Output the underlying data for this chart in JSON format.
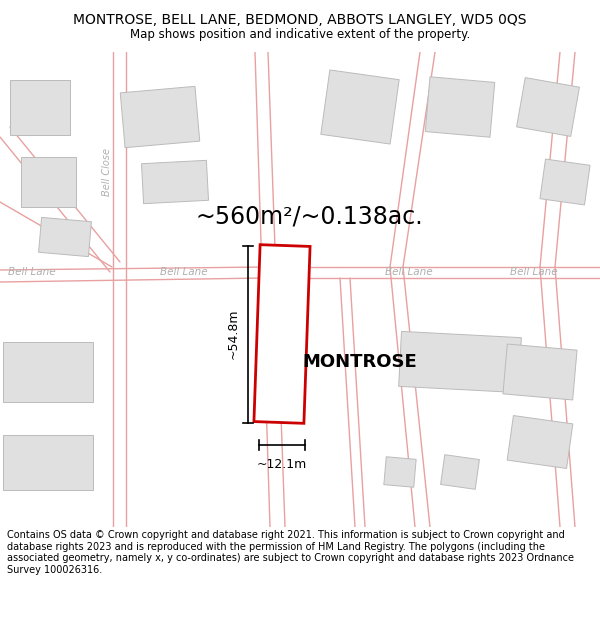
{
  "title_line1": "MONTROSE, BELL LANE, BEDMOND, ABBOTS LANGLEY, WD5 0QS",
  "title_line2": "Map shows position and indicative extent of the property.",
  "area_label": "~560m²/~0.138ac.",
  "property_label": "MONTROSE",
  "dim_height": "~54.8m",
  "dim_width": "~12.1m",
  "footer_text": "Contains OS data © Crown copyright and database right 2021. This information is subject to Crown copyright and database rights 2023 and is reproduced with the permission of HM Land Registry. The polygons (including the associated geometry, namely x, y co-ordinates) are subject to Crown copyright and database rights 2023 Ordnance Survey 100026316.",
  "map_bg": "#f8f8f6",
  "outline_color": "#e8a0a0",
  "highlight_color": "#cc0000",
  "building_fill": "#e0e0e0",
  "building_outline": "#bbbbbb",
  "footer_color": "#000000",
  "title_color": "#000000"
}
